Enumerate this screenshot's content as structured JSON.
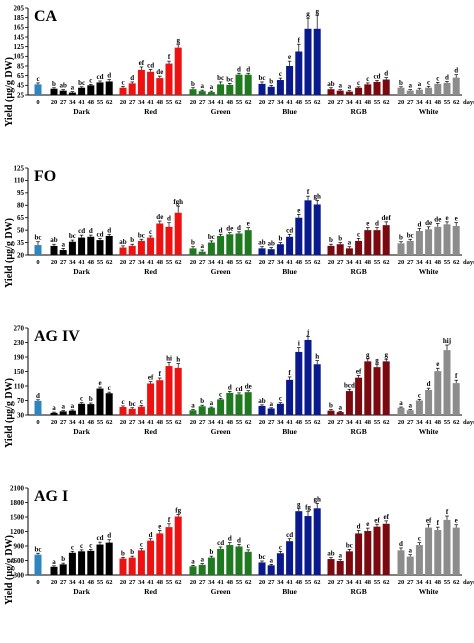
{
  "figure": {
    "ylabel": "Yield (µg/g DW)",
    "days_label": "days",
    "control_tick": "0",
    "day_ticks": [
      "20",
      "27",
      "34",
      "41",
      "48",
      "55",
      "62"
    ],
    "groups": [
      {
        "label": "Dark",
        "color": "#000000"
      },
      {
        "label": "Red",
        "color": "#ee1111"
      },
      {
        "label": "Green",
        "color": "#1f7a1f"
      },
      {
        "label": "Blue",
        "color": "#0a1a8c"
      },
      {
        "label": "RGB",
        "color": "#7a0a10"
      },
      {
        "label": "White",
        "color": "#8c8c8c"
      }
    ],
    "control_color": "#2e86c1"
  },
  "chart_data": [
    {
      "type": "bar",
      "title": "CA",
      "ylim": [
        25,
        205
      ],
      "yticks": [
        "25",
        "45",
        "65",
        "85",
        "105",
        "125",
        "145",
        "165",
        "185",
        "205"
      ],
      "control": {
        "value": 47,
        "err": 3,
        "sig": "c"
      },
      "series": [
        {
          "name": "Dark",
          "values": [
            38,
            34,
            30,
            40,
            45,
            51,
            53
          ],
          "err": [
            2,
            2,
            2,
            2,
            2,
            3,
            4
          ],
          "sig": [
            "b",
            "ab",
            "a",
            "bc",
            "c",
            "cd",
            "d"
          ]
        },
        {
          "name": "Red",
          "values": [
            40,
            49,
            77,
            73,
            60,
            90,
            123
          ],
          "err": [
            3,
            3,
            6,
            5,
            4,
            5,
            6
          ],
          "sig": [
            "c",
            "d",
            "ef",
            "cd",
            "de",
            "f",
            "g"
          ]
        },
        {
          "name": "Green",
          "values": [
            37,
            33,
            31,
            47,
            46,
            67,
            67
          ],
          "err": [
            3,
            2,
            2,
            5,
            3,
            3,
            3
          ],
          "sig": [
            "b",
            "a",
            "a",
            "bc",
            "bc",
            "d",
            "d"
          ]
        },
        {
          "name": "Blue",
          "values": [
            48,
            42,
            56,
            85,
            115,
            162,
            162
          ],
          "err": [
            4,
            3,
            4,
            10,
            15,
            22,
            28
          ],
          "sig": [
            "bc",
            "b",
            "c",
            "e",
            "f",
            "g",
            "g"
          ]
        },
        {
          "name": "RGB",
          "values": [
            37,
            34,
            32,
            40,
            47,
            52,
            57
          ],
          "err": [
            3,
            2,
            2,
            2,
            3,
            3,
            4
          ],
          "sig": [
            "ab",
            "a",
            "a",
            "c",
            "c",
            "cd",
            "d"
          ]
        },
        {
          "name": "White",
          "values": [
            40,
            34,
            36,
            40,
            48,
            50,
            61
          ],
          "err": [
            2,
            2,
            3,
            3,
            3,
            3,
            6
          ],
          "sig": [
            "b",
            "a",
            "a",
            "c",
            "c",
            "d",
            "d"
          ]
        }
      ]
    },
    {
      "type": "bar",
      "title": "FO",
      "ylim": [
        20,
        125
      ],
      "yticks": [
        "20",
        "35",
        "50",
        "65",
        "80",
        "95",
        "110",
        "125"
      ],
      "control": {
        "value": 32,
        "err": 4,
        "sig": "bc"
      },
      "series": [
        {
          "name": "Dark",
          "values": [
            31,
            26,
            36,
            41,
            42,
            38,
            43
          ],
          "err": [
            2,
            2,
            2,
            3,
            2,
            2,
            2
          ],
          "sig": [
            "ab",
            "a",
            "bc",
            "cd",
            "d",
            "cd",
            "d"
          ]
        },
        {
          "name": "Red",
          "values": [
            29,
            31,
            37,
            41,
            58,
            54,
            71
          ],
          "err": [
            2,
            2,
            2,
            2,
            3,
            5,
            8
          ],
          "sig": [
            "ab",
            "b",
            "bc",
            "c",
            "de",
            "d",
            "fgh"
          ]
        },
        {
          "name": "Green",
          "values": [
            28,
            24,
            35,
            43,
            45,
            46,
            50
          ],
          "err": [
            2,
            2,
            2,
            2,
            2,
            2,
            3
          ],
          "sig": [
            "b",
            "a",
            "bc",
            "d",
            "de",
            "d",
            "e"
          ]
        },
        {
          "name": "Blue",
          "values": [
            28,
            27,
            33,
            42,
            65,
            86,
            81
          ],
          "err": [
            2,
            2,
            2,
            3,
            4,
            5,
            5
          ],
          "sig": [
            "ab",
            "ab",
            "b",
            "cd",
            "e",
            "f",
            "gh"
          ]
        },
        {
          "name": "RGB",
          "values": [
            31,
            33,
            28,
            37,
            50,
            50,
            56
          ],
          "err": [
            2,
            2,
            2,
            3,
            3,
            3,
            4
          ],
          "sig": [
            "b",
            "b",
            "a",
            "c",
            "e",
            "d",
            "def"
          ]
        },
        {
          "name": "White",
          "values": [
            34,
            37,
            49,
            51,
            54,
            57,
            55
          ],
          "err": [
            2,
            2,
            3,
            3,
            4,
            3,
            4
          ],
          "sig": [
            "b",
            "bc",
            "d",
            "de",
            "de",
            "e",
            "e"
          ]
        }
      ]
    },
    {
      "type": "bar",
      "title": "AG IV",
      "ylim": [
        30,
        270
      ],
      "yticks": [
        "30",
        "70",
        "110",
        "150",
        "190",
        "230",
        "270"
      ],
      "control": {
        "value": 69,
        "err": 3,
        "sig": "d"
      },
      "series": [
        {
          "name": "Dark",
          "values": [
            36,
            40,
            42,
            61,
            60,
            103,
            90
          ],
          "err": [
            2,
            2,
            2,
            3,
            3,
            4,
            3
          ],
          "sig": [
            "a",
            "a",
            "a",
            "c",
            "b",
            "e",
            "c"
          ]
        },
        {
          "name": "Red",
          "values": [
            52,
            47,
            53,
            117,
            126,
            165,
            160
          ],
          "err": [
            3,
            3,
            3,
            5,
            6,
            10,
            12
          ],
          "sig": [
            "c",
            "bc",
            "c",
            "ef",
            "f",
            "hi",
            "h"
          ]
        },
        {
          "name": "Green",
          "values": [
            43,
            54,
            50,
            73,
            91,
            87,
            93
          ],
          "err": [
            2,
            3,
            2,
            3,
            4,
            4,
            4
          ],
          "sig": [
            "a",
            "b",
            "a",
            "c",
            "d",
            "cd",
            "de"
          ]
        },
        {
          "name": "Blue",
          "values": [
            55,
            48,
            61,
            127,
            204,
            237,
            170
          ],
          "err": [
            3,
            2,
            3,
            8,
            12,
            10,
            10
          ],
          "sig": [
            "ab",
            "a",
            "c",
            "f",
            "i",
            "j",
            "h"
          ]
        },
        {
          "name": "RGB",
          "values": [
            42,
            38,
            96,
            133,
            178,
            162,
            178
          ],
          "err": [
            3,
            2,
            5,
            6,
            7,
            8,
            6
          ],
          "sig": [
            "b",
            "a",
            "bcd",
            "ef",
            "g",
            "g",
            "g"
          ]
        },
        {
          "name": "White",
          "values": [
            50,
            43,
            70,
            99,
            151,
            209,
            118
          ],
          "err": [
            2,
            2,
            3,
            5,
            8,
            14,
            8
          ],
          "sig": [
            "a",
            "a",
            "c",
            "d",
            "e",
            "hij",
            "f"
          ]
        }
      ]
    },
    {
      "type": "bar",
      "title": "AG I",
      "ylim": [
        300,
        2100
      ],
      "yticks": [
        "300",
        "600",
        "900",
        "1200",
        "1500",
        "1800",
        "2100"
      ],
      "control": {
        "value": 720,
        "err": 30,
        "sig": "bc"
      },
      "series": [
        {
          "name": "Dark",
          "values": [
            470,
            520,
            760,
            790,
            800,
            930,
            970
          ],
          "err": [
            20,
            25,
            30,
            30,
            30,
            50,
            60
          ],
          "sig": [
            "a",
            "b",
            "c",
            "c",
            "c",
            "cd",
            "d"
          ]
        },
        {
          "name": "Red",
          "values": [
            640,
            660,
            810,
            1010,
            1160,
            1290,
            1510
          ],
          "err": [
            25,
            30,
            35,
            40,
            60,
            70,
            40
          ],
          "sig": [
            "b",
            "b",
            "c",
            "d",
            "e",
            "f",
            "fg"
          ]
        },
        {
          "name": "Green",
          "values": [
            480,
            510,
            660,
            840,
            920,
            890,
            780
          ],
          "err": [
            20,
            25,
            30,
            40,
            50,
            45,
            40
          ],
          "sig": [
            "a",
            "a",
            "b",
            "cd",
            "d",
            "d",
            "c"
          ]
        },
        {
          "name": "Blue",
          "values": [
            560,
            500,
            750,
            1000,
            1620,
            1520,
            1680
          ],
          "err": [
            30,
            20,
            40,
            50,
            60,
            90,
            100
          ],
          "sig": [
            "bc",
            "a",
            "c",
            "cd",
            "g",
            "fg",
            "gh"
          ]
        },
        {
          "name": "RGB",
          "values": [
            630,
            590,
            790,
            1160,
            1210,
            1300,
            1360
          ],
          "err": [
            30,
            30,
            40,
            60,
            60,
            50,
            60
          ],
          "sig": [
            "ab",
            "a",
            "bc",
            "d",
            "e",
            "ef",
            "ef"
          ]
        },
        {
          "name": "White",
          "values": [
            810,
            680,
            920,
            1280,
            1230,
            1440,
            1280
          ],
          "err": [
            50,
            40,
            50,
            70,
            60,
            80,
            60
          ],
          "sig": [
            "d",
            "a",
            "c",
            "ef",
            "f",
            "f",
            "e"
          ]
        }
      ]
    }
  ]
}
